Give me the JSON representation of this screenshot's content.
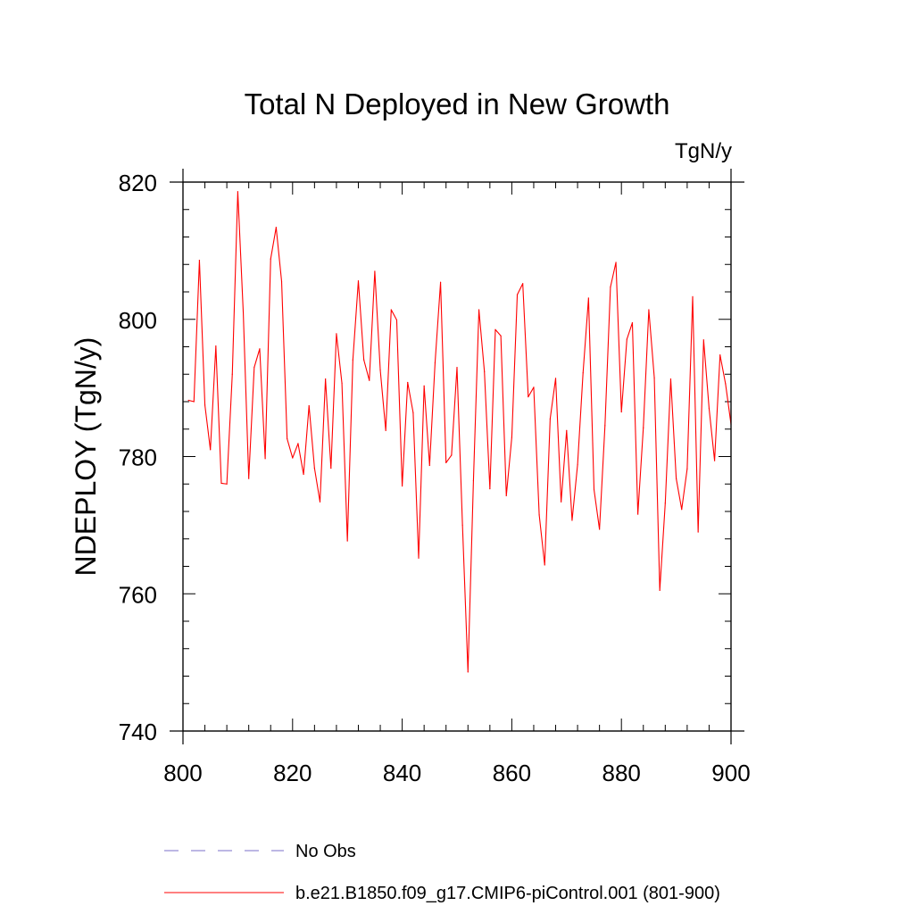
{
  "chart_data": {
    "type": "line",
    "title": "Total N Deployed in New Growth",
    "units": "TgN/y",
    "ylabel": "NDEPLOY  (TgN/y)",
    "xlabel": "",
    "xlim": [
      800,
      900
    ],
    "ylim": [
      740,
      820
    ],
    "xticks": [
      800,
      820,
      840,
      860,
      880,
      900
    ],
    "yticks": [
      740,
      760,
      780,
      800,
      820
    ],
    "xminor": 5,
    "yminor": 5,
    "series": [
      {
        "name": "b.e21.B1850.f09_g17.CMIP6-piControl.001 (801-900)",
        "color": "#ff0000",
        "style": "solid",
        "x": [
          801,
          802,
          803,
          804,
          805,
          806,
          807,
          808,
          809,
          810,
          811,
          812,
          813,
          814,
          815,
          816,
          817,
          818,
          819,
          820,
          821,
          822,
          823,
          824,
          825,
          826,
          827,
          828,
          829,
          830,
          831,
          832,
          833,
          834,
          835,
          836,
          837,
          838,
          839,
          840,
          841,
          842,
          843,
          844,
          845,
          846,
          847,
          848,
          849,
          850,
          851,
          852,
          853,
          854,
          855,
          856,
          857,
          858,
          859,
          860,
          861,
          862,
          863,
          864,
          865,
          866,
          867,
          868,
          869,
          870,
          871,
          872,
          873,
          874,
          875,
          876,
          877,
          878,
          879,
          880,
          881,
          882,
          883,
          884,
          885,
          886,
          887,
          888,
          889,
          890,
          891,
          892,
          893,
          894,
          895,
          896,
          897,
          898,
          899,
          900
        ],
        "values": [
          788.2,
          788.0,
          808.6,
          787.5,
          781.0,
          796.1,
          776.1,
          776.0,
          792.0,
          818.6,
          801.0,
          776.8,
          793.0,
          795.7,
          779.7,
          808.8,
          813.4,
          805.5,
          782.6,
          779.8,
          781.9,
          777.4,
          787.4,
          778.3,
          773.4,
          791.3,
          778.3,
          797.9,
          790.7,
          767.7,
          794.1,
          805.6,
          794.1,
          791.1,
          807.0,
          792.6,
          783.8,
          801.4,
          799.9,
          775.7,
          790.8,
          786.4,
          765.2,
          790.3,
          778.7,
          793.7,
          805.4,
          779.1,
          780.2,
          793.0,
          770.0,
          748.6,
          776.5,
          801.4,
          792.4,
          775.3,
          798.5,
          797.6,
          774.3,
          782.8,
          803.6,
          805.2,
          788.7,
          790.1,
          771.5,
          764.2,
          785.5,
          791.4,
          773.4,
          783.8,
          770.7,
          778.8,
          792.2,
          803.1,
          775.2,
          769.4,
          784.5,
          804.7,
          808.3,
          786.5,
          797.1,
          799.5,
          771.6,
          784.2,
          801.4,
          791.5,
          760.5,
          773.2,
          791.3,
          776.8,
          772.3,
          778.2,
          803.3,
          769.0,
          797.0,
          787.0,
          779.4,
          794.8,
          790.6,
          784.7
        ]
      },
      {
        "name": "No Obs",
        "color": "#7b6fc9",
        "style": "dashed",
        "x": [],
        "values": []
      }
    ],
    "legend": {
      "position": "bottom-left",
      "entries": [
        "No Obs",
        "b.e21.B1850.f09_g17.CMIP6-piControl.001 (801-900)"
      ]
    }
  }
}
